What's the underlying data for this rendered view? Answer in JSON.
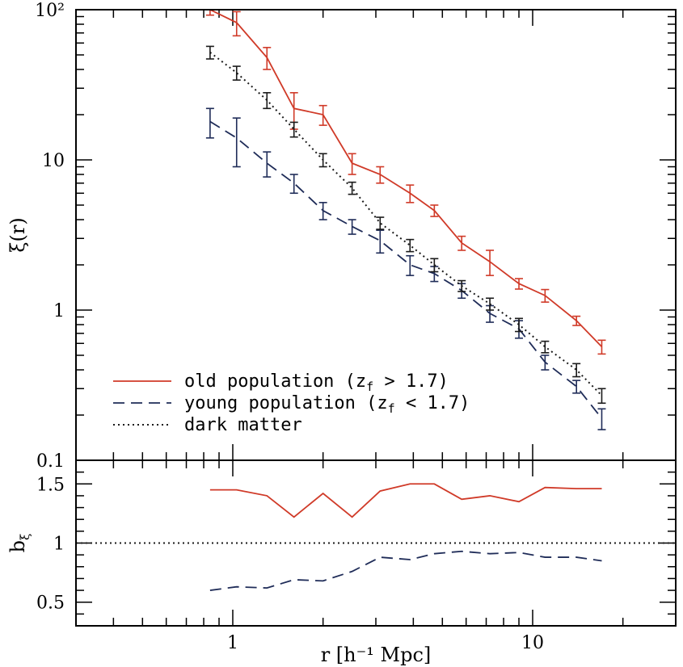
{
  "chart_data": [
    {
      "type": "line",
      "panel": "top",
      "yscale": "log",
      "xscale": "log",
      "xlim": [
        0.3,
        30
      ],
      "ylim": [
        0.1,
        100
      ],
      "ylabel": "ξ(r)",
      "xlabel": "",
      "ytick_labels": [
        "0.1",
        "1",
        "10",
        "10²"
      ],
      "x": [
        0.84,
        1.03,
        1.3,
        1.6,
        2.0,
        2.5,
        3.1,
        3.9,
        4.7,
        5.8,
        7.2,
        9.0,
        11.0,
        14.0,
        17.0
      ],
      "series": [
        {
          "name": "old population (z_f > 1.7)",
          "legend_text": "old population (z",
          "legend_sub": "f",
          "legend_tail": " > 1.7)",
          "color": "#d03a28",
          "style": "solid",
          "values": [
            100,
            82,
            48,
            22,
            20,
            9.5,
            8.0,
            6.0,
            4.6,
            2.8,
            2.1,
            1.5,
            1.25,
            0.85,
            0.57
          ],
          "errors": [
            8,
            15,
            8,
            6,
            3,
            1.5,
            1.0,
            0.8,
            0.4,
            0.3,
            0.4,
            0.12,
            0.12,
            0.06,
            0.06
          ]
        },
        {
          "name": "young population (z_f < 1.7)",
          "legend_text": "young population (z",
          "legend_sub": "f",
          "legend_tail": " < 1.7)",
          "color": "#1f2c58",
          "style": "dashed",
          "values": [
            18,
            14,
            9.5,
            7.0,
            4.6,
            3.6,
            2.9,
            2.0,
            1.75,
            1.35,
            0.95,
            0.75,
            0.45,
            0.31,
            0.19
          ],
          "errors": [
            4,
            5,
            1.8,
            1.0,
            0.6,
            0.4,
            0.5,
            0.3,
            0.2,
            0.15,
            0.12,
            0.1,
            0.05,
            0.03,
            0.03
          ]
        },
        {
          "name": "dark matter",
          "legend_text": "dark matter",
          "legend_sub": "",
          "legend_tail": "",
          "color": "#1a1a1a",
          "style": "dotted",
          "values": [
            52,
            38,
            25,
            16,
            10,
            6.5,
            3.8,
            2.7,
            2.0,
            1.45,
            1.1,
            0.8,
            0.57,
            0.4,
            0.27
          ],
          "errors": [
            5,
            4,
            3,
            1.8,
            1.0,
            0.6,
            0.35,
            0.25,
            0.2,
            0.12,
            0.1,
            0.08,
            0.05,
            0.04,
            0.03
          ]
        }
      ]
    },
    {
      "type": "line",
      "panel": "bottom",
      "xscale": "log",
      "yscale": "linear",
      "xlim": [
        0.3,
        30
      ],
      "ylim": [
        0.3,
        1.7
      ],
      "ylabel": "b",
      "ylabel_sub": "ξ",
      "xlabel": "r [h⁻¹ Mpc]",
      "xtick_labels": [
        "1",
        "10"
      ],
      "ytick_labels": [
        "0.5",
        "1",
        "1.5"
      ],
      "reference_line": 1,
      "x": [
        0.84,
        1.03,
        1.3,
        1.6,
        2.0,
        2.5,
        3.1,
        3.9,
        4.7,
        5.8,
        7.2,
        9.0,
        11.0,
        14.0,
        17.0
      ],
      "series": [
        {
          "name": "old population",
          "color": "#d03a28",
          "style": "solid",
          "values": [
            1.45,
            1.45,
            1.4,
            1.22,
            1.42,
            1.22,
            1.44,
            1.5,
            1.5,
            1.37,
            1.4,
            1.35,
            1.47,
            1.46,
            1.46
          ]
        },
        {
          "name": "young population",
          "color": "#1f2c58",
          "style": "dashed",
          "values": [
            0.6,
            0.63,
            0.62,
            0.69,
            0.68,
            0.76,
            0.88,
            0.86,
            0.91,
            0.93,
            0.91,
            0.92,
            0.88,
            0.88,
            0.85
          ]
        }
      ]
    }
  ]
}
